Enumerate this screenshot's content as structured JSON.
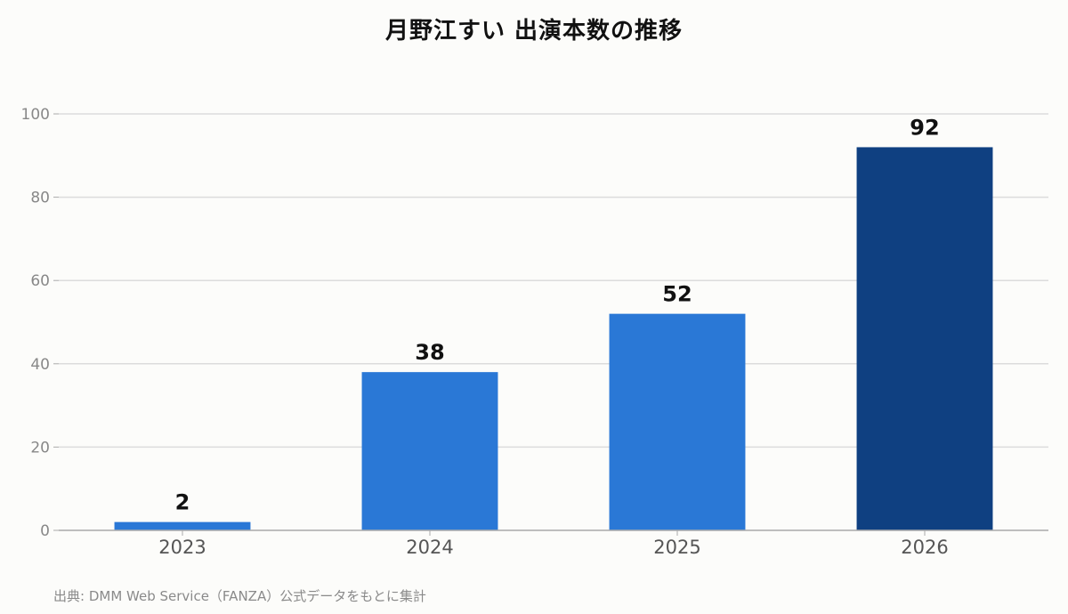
{
  "chart_data": {
    "type": "bar",
    "title": "月野江すい 出演本数の推移",
    "categories": [
      "2023",
      "2024",
      "2025",
      "2026"
    ],
    "values": [
      2,
      38,
      52,
      92
    ],
    "data_labels": [
      "2",
      "38",
      "52",
      "92"
    ],
    "xlabel": "",
    "ylabel": "",
    "ylim": [
      0,
      100
    ],
    "yticks": [
      0,
      20,
      40,
      60,
      80,
      100
    ],
    "grid": true,
    "colors": {
      "bar": "#2a78d6",
      "highlight": "#0f4081",
      "grid": "#dcdcdc",
      "axis": "#aaaaaa",
      "tick_label": "#888888",
      "category_label": "#555555"
    },
    "highlight_index": 3
  },
  "footer": {
    "source": "出典: DMM Web Service（FANZA）公式データをもとに集計"
  }
}
